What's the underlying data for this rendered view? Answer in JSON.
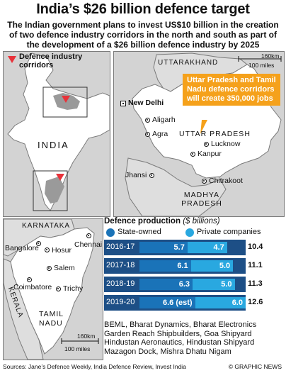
{
  "header": {
    "title": "India’s $26 billion defence target",
    "subtitle": "The Indian government plans to invest US$10 billion in the creation of two defence industry corridors in the north and south as part of the development of a $26 billion defence industry by 2025"
  },
  "map_legend": {
    "label": "Defence industry corridors"
  },
  "locator_map": {
    "country_label": "INDIA"
  },
  "north_map": {
    "neighbor_labels": [
      "UTTARAKHAND",
      "MADHYA PRADESH"
    ],
    "state_label": "UTTAR PRADESH",
    "capital": "New Delhi",
    "cities": [
      "Aligarh",
      "Agra",
      "Lucknow",
      "Kanpur",
      "Jhansi",
      "Chitrakoot"
    ],
    "scale": {
      "km": "160km",
      "miles": "100 miles"
    },
    "callout": "Uttar Pradesh and Tamil Nadu defence corridors will create 350,000 jobs"
  },
  "south_map": {
    "neighbor_labels": [
      "KARNATAKA",
      "KERALA"
    ],
    "state_label": "TAMIL NADU",
    "cities": [
      "Bangalore",
      "Hosur",
      "Chennai",
      "Salem",
      "Coimbatore",
      "Trichy"
    ],
    "scale": {
      "km": "160km",
      "miles": "100 miles"
    }
  },
  "chart_data": {
    "type": "bar",
    "title": "Defence production",
    "unit": "($ billions)",
    "categories": [
      "2016-17",
      "2017-18",
      "2018-19",
      "2019-20"
    ],
    "series": [
      {
        "name": "State-owned",
        "values": [
          5.7,
          6.1,
          6.3,
          6.6
        ],
        "labels": [
          "5.7",
          "6.1",
          "6.3",
          "6.6 (est)"
        ]
      },
      {
        "name": "Private companies",
        "values": [
          4.7,
          5.0,
          5.0,
          6.0
        ],
        "labels": [
          "4.7",
          "5.0",
          "5.0",
          "6.0"
        ]
      }
    ],
    "totals": [
      "10.4",
      "11.1",
      "11.3",
      "12.6"
    ],
    "xlim": [
      0,
      12.6
    ],
    "colors": {
      "state": "#1a73b8",
      "private": "#29a8e0",
      "row": "#1d4f86"
    }
  },
  "companies": "BEML, Bharat Dynamics, Bharat Electronics Garden Reach Shipbuilders, Goa Shipyard Hindustan Aeronautics, Hindustan Shipyard Mazagon Dock, Mishra Dhatu Nigam",
  "footer": {
    "sources": "Sources: Jane’s Defence Weekly, India Defence Review, Invest India",
    "credit": "© GRAPHIC NEWS"
  },
  "watermark": "GRAPHIC NEWS"
}
